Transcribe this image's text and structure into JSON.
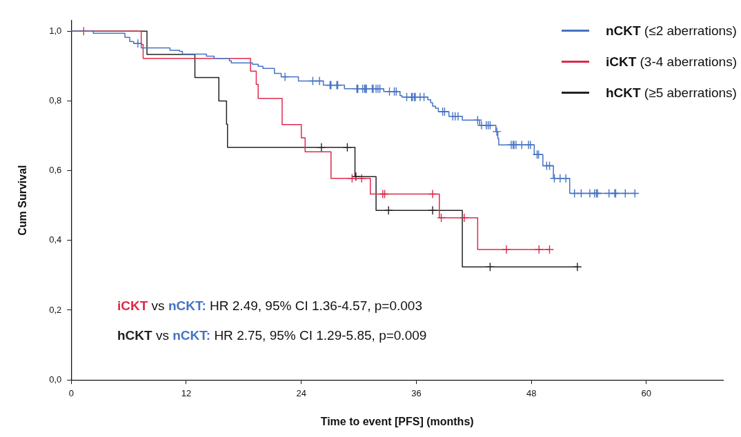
{
  "chart_data": {
    "type": "step",
    "xlabel": "Time to event [PFS] (months)",
    "ylabel": "Cum Survival",
    "xlim": [
      0,
      68
    ],
    "xticks": [
      0,
      12,
      24,
      36,
      48,
      60
    ],
    "ylim": [
      0,
      1.03
    ],
    "yticks": [
      {
        "value": 0,
        "label": "0,0"
      },
      {
        "value": 0.2,
        "label": "0,2"
      },
      {
        "value": 0.4,
        "label": "0,4"
      },
      {
        "value": 0.6,
        "label": "0,6"
      },
      {
        "value": 0.8,
        "label": "0,8"
      },
      {
        "value": 1,
        "label": "1,0"
      }
    ],
    "grid": false,
    "legend": "top right",
    "annotations": [
      "iCKT vs nCKT: HR 2.49, 95% CI 1.36-4.57, p=0.003",
      "hCKT vs nCKT: HR 2.75, 95% CI 1.29-5.85, p=0.009"
    ],
    "series": [
      {
        "name": "nCKT (≤2 aberrations)",
        "type": "step",
        "color": "#4472c4",
        "marker": "none",
        "x": [
          0,
          2.3,
          5.6,
          6.1,
          6.5,
          7.3,
          10.3,
          11.3,
          11.6,
          14.1,
          14.9,
          16.5,
          16.7,
          18.9,
          19.5,
          20.0,
          21.2,
          21.9,
          23.7,
          26.3,
          28.5,
          32.6,
          34.3,
          34.5,
          37.2,
          37.5,
          37.7,
          38.0,
          38.3,
          39.4,
          40.8,
          42.6,
          44.3,
          44.5,
          44.6,
          48.3,
          49.2,
          50.3,
          52.0,
          58.9
        ],
        "values": [
          1,
          0.994,
          0.982,
          0.97,
          0.965,
          0.952,
          0.945,
          0.942,
          0.934,
          0.928,
          0.922,
          0.915,
          0.909,
          0.905,
          0.899,
          0.893,
          0.879,
          0.869,
          0.857,
          0.845,
          0.835,
          0.827,
          0.815,
          0.811,
          0.803,
          0.795,
          0.785,
          0.779,
          0.769,
          0.756,
          0.745,
          0.73,
          0.712,
          0.692,
          0.674,
          0.646,
          0.614,
          0.578,
          0.535,
          0.535
        ]
      },
      {
        "name": "iCKT (3-4 aberrations)",
        "type": "step",
        "color": "#e0284a",
        "marker": "none",
        "x": [
          0,
          7.3,
          7.5,
          18.7,
          19.3,
          19.5,
          22.0,
          24.0,
          24.4,
          27.1,
          31.2,
          38.4,
          42.4,
          49.9
        ],
        "values": [
          1,
          0.962,
          0.922,
          0.885,
          0.847,
          0.807,
          0.732,
          0.694,
          0.654,
          0.578,
          0.533,
          0.465,
          0.374,
          0.374
        ]
      },
      {
        "name": "hCKT (≥5 aberrations)",
        "type": "step",
        "color": "#222222",
        "marker": "none",
        "x": [
          0,
          7.9,
          12.9,
          15.4,
          16.2,
          16.3,
          29.6,
          31.8,
          40.8,
          52.9
        ],
        "values": [
          1,
          0.933,
          0.867,
          0.8,
          0.733,
          0.667,
          0.583,
          0.486,
          0.324,
          0.324
        ]
      },
      {
        "type": "scatter",
        "color": "#4472c4",
        "marker": "cross",
        "x": [
          6.95,
          22.3,
          25.2,
          25.9,
          27.0,
          27.1,
          27.7,
          27.8,
          29.8,
          29.9,
          30.4,
          30.6,
          30.7,
          30.8,
          31.4,
          31.5,
          31.8,
          32.0,
          32.2,
          33.2,
          33.7,
          33.9,
          35.0,
          35.5,
          35.6,
          35.8,
          35.9,
          36.4,
          36.8,
          38.75,
          38.95,
          39.8,
          40.05,
          40.35,
          42.4,
          42.8,
          43.3,
          43.5,
          43.7,
          44.4,
          45.9,
          46.1,
          46.2,
          46.4,
          47.0,
          47.7,
          47.9,
          48.6,
          48.75,
          49.6,
          49.9,
          50.4,
          51.0,
          51.6,
          52.5,
          53.2,
          54.1,
          54.6,
          54.8,
          54.9,
          56.1,
          56.7,
          56.8,
          57.8,
          58.8
        ],
        "values": [
          0.965,
          0.869,
          0.857,
          0.857,
          0.845,
          0.845,
          0.845,
          0.845,
          0.835,
          0.835,
          0.835,
          0.835,
          0.835,
          0.835,
          0.835,
          0.835,
          0.835,
          0.835,
          0.835,
          0.827,
          0.827,
          0.827,
          0.811,
          0.811,
          0.811,
          0.811,
          0.811,
          0.811,
          0.811,
          0.769,
          0.769,
          0.756,
          0.756,
          0.756,
          0.745,
          0.73,
          0.73,
          0.73,
          0.73,
          0.712,
          0.674,
          0.674,
          0.674,
          0.674,
          0.674,
          0.674,
          0.674,
          0.646,
          0.646,
          0.614,
          0.614,
          0.578,
          0.578,
          0.578,
          0.535,
          0.535,
          0.535,
          0.535,
          0.535,
          0.535,
          0.535,
          0.535,
          0.535,
          0.535,
          0.535
        ]
      },
      {
        "type": "scatter",
        "color": "#e0284a",
        "marker": "cross",
        "x": [
          1.3,
          29.3,
          30.3,
          32.5,
          32.7,
          37.7,
          38.6,
          41.0,
          45.4,
          48.8,
          49.9
        ],
        "values": [
          1,
          0.578,
          0.578,
          0.533,
          0.533,
          0.533,
          0.465,
          0.465,
          0.374,
          0.374,
          0.374
        ]
      },
      {
        "type": "scatter",
        "color": "#222222",
        "marker": "cross",
        "x": [
          26.1,
          28.8,
          29.7,
          33.1,
          37.7,
          43.7,
          52.8
        ],
        "values": [
          0.667,
          0.667,
          0.583,
          0.486,
          0.486,
          0.324,
          0.324
        ]
      }
    ]
  }
}
